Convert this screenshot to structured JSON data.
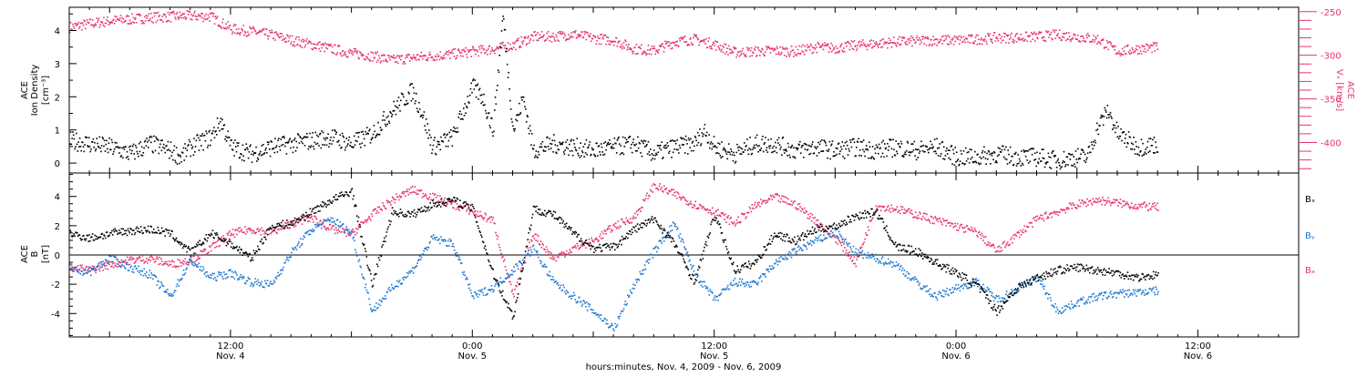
{
  "colors": {
    "density": "#000000",
    "vx": "#e8336b",
    "bx": "#000000",
    "by": "#1e78d2",
    "bz": "#e8336b"
  },
  "xaxis": {
    "title": "hours:minutes, Nov.  4, 2009 - Nov.  6, 2009",
    "ticks": [
      {
        "time": "12:00",
        "day": "Nov. 4",
        "h": 12
      },
      {
        "time": "0:00",
        "day": "Nov. 5",
        "h": 24
      },
      {
        "time": "12:00",
        "day": "Nov. 5",
        "h": 36
      },
      {
        "time": "0:00",
        "day": "Nov. 6",
        "h": 48
      },
      {
        "time": "12:00",
        "day": "Nov. 6",
        "h": 60
      }
    ]
  },
  "panel1": {
    "ylabel_line1": "ACE",
    "ylabel_line2": "Ion Density",
    "ylabel_line3": "[cm⁻³]",
    "right_label_line1": "ACE",
    "right_label_line2": "Vₓ [km/s]"
  },
  "panel2": {
    "ylabel_line1": "ACE",
    "ylabel_line2": "B",
    "ylabel_line3": "[nT]",
    "legend": [
      {
        "text": "Bₓ",
        "key": "bx"
      },
      {
        "text": "Bᵧ",
        "key": "by"
      },
      {
        "text": "Bₔ",
        "key": "bz"
      }
    ]
  },
  "chart_data": [
    {
      "type": "scatter",
      "title": "",
      "xlabel": "hours:minutes, Nov.  4, 2009 - Nov.  6, 2009",
      "ylabel": "ACE Ion Density [cm⁻³]",
      "xlim_hours": [
        4,
        65
      ],
      "ylim": [
        -0.3,
        4.7
      ],
      "yticks": [
        0,
        1,
        2,
        3,
        4
      ],
      "series": [
        {
          "name": "Ion Density",
          "axis": "left",
          "hours": [
            4,
            5,
            6,
            7,
            8,
            9,
            9.5,
            10,
            11,
            11.5,
            12,
            13,
            14,
            15,
            16,
            17,
            18,
            19,
            20,
            21,
            21.5,
            22,
            23,
            24,
            24.5,
            25,
            25.5,
            26,
            26.5,
            27,
            28,
            29,
            30,
            31,
            32,
            33,
            34,
            35,
            35.5,
            36,
            37,
            38,
            39,
            40,
            41,
            42,
            43,
            44,
            45,
            46,
            47,
            48,
            49,
            50,
            51,
            52,
            53,
            54,
            54.5,
            55,
            55.5,
            56,
            57,
            58
          ],
          "values": [
            0.7,
            0.6,
            0.5,
            0.3,
            0.6,
            0.4,
            0.2,
            0.5,
            0.8,
            1.3,
            0.5,
            0.3,
            0.5,
            0.6,
            0.7,
            0.8,
            0.6,
            0.9,
            1.6,
            2.2,
            1.5,
            0.5,
            0.8,
            2.3,
            2.0,
            1.0,
            4.5,
            1.0,
            2.0,
            0.4,
            0.6,
            0.5,
            0.4,
            0.5,
            0.6,
            0.3,
            0.5,
            0.6,
            1.0,
            0.5,
            0.3,
            0.6,
            0.6,
            0.4,
            0.5,
            0.4,
            0.5,
            0.4,
            0.5,
            0.4,
            0.5,
            0.2,
            0.2,
            0.3,
            0.2,
            0.2,
            0.1,
            0.2,
            0.2,
            1.1,
            1.6,
            0.9,
            0.5,
            0.6
          ]
        },
        {
          "name": "Vx",
          "axis": "right",
          "ylim_right": [
            -435,
            -245
          ],
          "yticks_right": [
            -250,
            -300,
            -350,
            -400
          ],
          "hours": [
            4,
            5,
            6,
            7,
            8,
            9,
            10,
            11,
            12,
            13,
            14,
            15,
            16,
            17,
            18,
            19,
            20,
            21,
            22,
            23,
            24,
            25,
            26,
            27,
            28,
            29,
            30,
            31,
            32,
            33,
            34,
            35,
            36,
            37,
            38,
            39,
            40,
            41,
            42,
            43,
            44,
            45,
            46,
            47,
            48,
            49,
            50,
            51,
            52,
            53,
            54,
            55,
            56,
            57,
            58
          ],
          "values": [
            -267,
            -263,
            -260,
            -258,
            -256,
            -255,
            -254,
            -255,
            -269,
            -272,
            -276,
            -282,
            -287,
            -292,
            -297,
            -300,
            -305,
            -302,
            -300,
            -298,
            -295,
            -292,
            -288,
            -278,
            -278,
            -275,
            -280,
            -282,
            -292,
            -294,
            -284,
            -281,
            -287,
            -296,
            -295,
            -294,
            -295,
            -290,
            -291,
            -288,
            -286,
            -284,
            -283,
            -282,
            -282,
            -281,
            -279,
            -279,
            -278,
            -276,
            -278,
            -281,
            -295,
            -292,
            -290
          ]
        }
      ]
    },
    {
      "type": "scatter",
      "title": "",
      "xlabel": "hours:minutes, Nov.  4, 2009 - Nov.  6, 2009",
      "ylabel": "ACE B [nT]",
      "xlim_hours": [
        4,
        65
      ],
      "ylim": [
        -5.6,
        5.6
      ],
      "yticks": [
        -4,
        -2,
        0,
        2,
        4
      ],
      "grid": false,
      "legend_position": "right",
      "series": [
        {
          "name": "Bx",
          "hours": [
            4,
            5,
            6,
            7,
            8,
            9,
            10,
            11,
            12,
            13,
            14,
            15,
            16,
            17,
            18,
            19,
            20,
            21,
            22,
            23,
            24,
            25,
            26,
            27,
            28,
            29,
            30,
            31,
            32,
            33,
            34,
            35,
            36,
            37,
            38,
            39,
            40,
            41,
            42,
            43,
            44,
            45,
            46,
            47,
            48,
            49,
            50,
            51,
            52,
            53,
            54,
            55,
            56,
            57,
            58
          ],
          "values": [
            1.5,
            1.2,
            1.5,
            1.7,
            1.8,
            1.5,
            0.2,
            1.5,
            0.8,
            -0.2,
            2.0,
            2.2,
            3.0,
            3.8,
            4.4,
            -2.0,
            3.0,
            2.8,
            3.5,
            3.8,
            3.2,
            -1.2,
            -4.2,
            3.2,
            2.8,
            1.5,
            0.5,
            0.6,
            1.8,
            2.5,
            0.8,
            -1.8,
            2.8,
            -1.0,
            -0.5,
            1.5,
            1.0,
            1.8,
            2.0,
            2.7,
            3.0,
            0.6,
            0.3,
            -0.5,
            -1.2,
            -2.0,
            -3.8,
            -2.2,
            -1.5,
            -1.0,
            -0.8,
            -1.0,
            -1.2,
            -1.5,
            -1.3
          ]
        },
        {
          "name": "By",
          "hours": [
            4,
            5,
            6,
            7,
            8,
            9,
            10,
            11,
            12,
            13,
            14,
            15,
            16,
            17,
            18,
            19,
            20,
            21,
            22,
            23,
            24,
            25,
            26,
            27,
            28,
            29,
            30,
            31,
            32,
            33,
            34,
            35,
            36,
            37,
            38,
            39,
            40,
            41,
            42,
            43,
            44,
            45,
            46,
            47,
            48,
            49,
            50,
            51,
            52,
            53,
            54,
            55,
            56,
            57,
            58
          ],
          "values": [
            -1.0,
            -1.1,
            -0.2,
            -0.8,
            -1.3,
            -2.8,
            -0.3,
            -1.5,
            -1.2,
            -1.8,
            -2.0,
            0.2,
            1.8,
            2.5,
            1.5,
            -3.8,
            -2.2,
            -1.0,
            1.2,
            0.8,
            -2.8,
            -2.2,
            -1.0,
            0.5,
            -1.8,
            -2.8,
            -3.8,
            -5.0,
            -2.0,
            0.3,
            2.2,
            -1.2,
            -3.0,
            -1.8,
            -2.0,
            -0.5,
            0.3,
            1.0,
            1.6,
            0.2,
            -0.2,
            -0.6,
            -1.8,
            -2.8,
            -2.2,
            -1.8,
            -3.0,
            -2.3,
            -1.5,
            -3.8,
            -3.2,
            -2.8,
            -2.6,
            -2.5,
            -2.4
          ]
        },
        {
          "name": "Bz",
          "hours": [
            4,
            5,
            6,
            7,
            8,
            9,
            10,
            11,
            12,
            13,
            14,
            15,
            16,
            17,
            18,
            19,
            20,
            21,
            22,
            23,
            24,
            25,
            26,
            27,
            28,
            29,
            30,
            31,
            32,
            33,
            34,
            35,
            36,
            37,
            38,
            39,
            40,
            41,
            42,
            43,
            44,
            45,
            46,
            47,
            48,
            49,
            50,
            51,
            52,
            53,
            54,
            55,
            56,
            57,
            58
          ],
          "values": [
            -0.8,
            -1.0,
            -0.6,
            -0.3,
            -0.2,
            -0.6,
            -0.3,
            0.5,
            1.5,
            1.8,
            1.6,
            2.2,
            2.6,
            1.8,
            1.5,
            2.8,
            3.8,
            4.5,
            4.0,
            3.5,
            3.0,
            2.4,
            -2.8,
            1.5,
            -0.2,
            0.5,
            1.0,
            2.0,
            2.6,
            4.8,
            4.2,
            3.5,
            3.0,
            2.2,
            3.4,
            4.0,
            3.5,
            2.4,
            1.2,
            -0.5,
            3.4,
            3.2,
            2.8,
            2.4,
            2.0,
            1.6,
            0.3,
            1.4,
            2.5,
            3.0,
            3.5,
            3.8,
            3.6,
            3.4,
            3.3
          ]
        }
      ]
    }
  ]
}
